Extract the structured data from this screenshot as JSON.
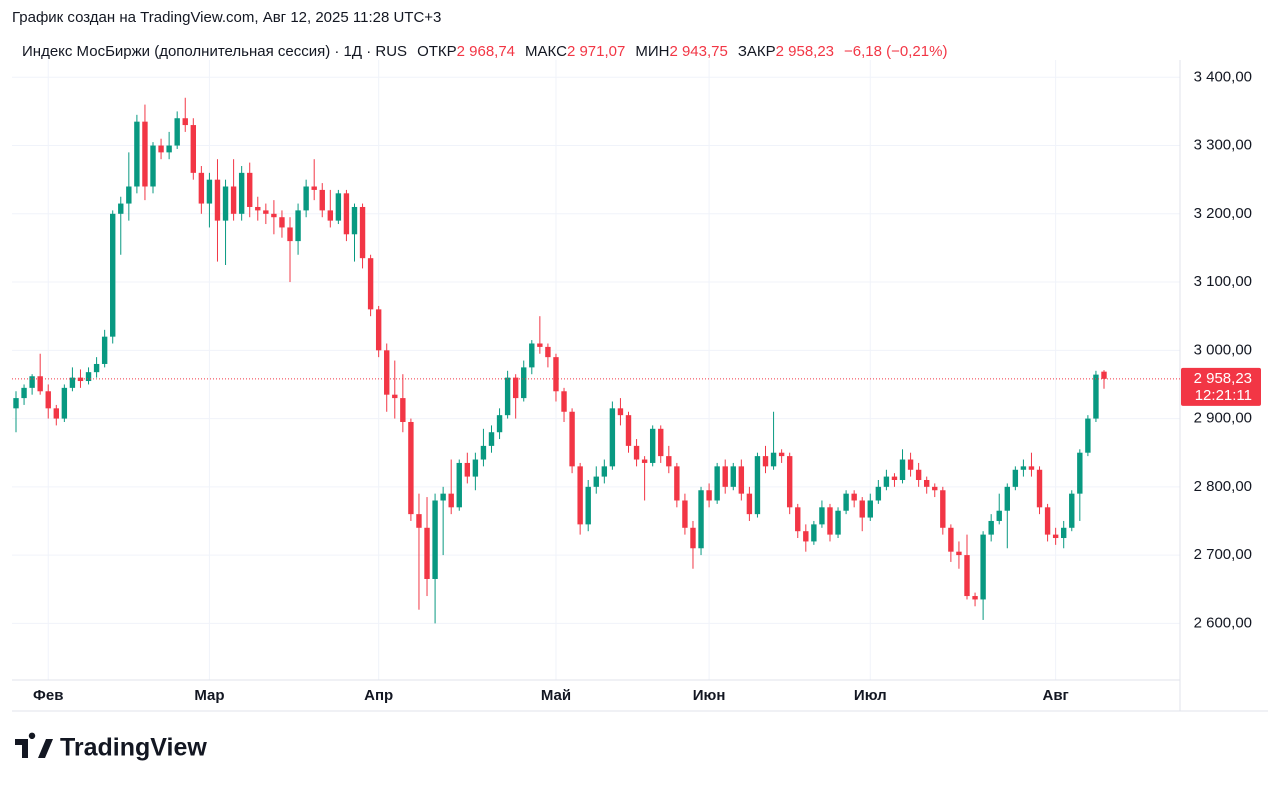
{
  "caption": "График создан на TradingView.com, Авг 12, 2025 11:28 UTC+3",
  "brand": "TradingView",
  "chart_data": {
    "type": "candlestick",
    "title": "Индекс МосБиржи (дополнительная сессия) · 1Д · RUS",
    "ohlc_legend": [
      {
        "name": "ОТКР",
        "text": "2 968,74"
      },
      {
        "name": "МАКС",
        "text": "2 971,07"
      },
      {
        "name": "МИН",
        "text": "2 943,75"
      },
      {
        "name": "ЗАКР",
        "text": "2 958,23"
      }
    ],
    "change": "−6,18 (−0,21%)",
    "last_price": {
      "value": 2958.23,
      "label": "2 958,23"
    },
    "countdown": "12:21:11",
    "up_color": "#089981",
    "down_color": "#f23645",
    "grid": true,
    "ylim": [
      2517,
      3418
    ],
    "yticks": [
      {
        "value": 2600,
        "label": "2 600,00"
      },
      {
        "value": 2700,
        "label": "2 700,00"
      },
      {
        "value": 2800,
        "label": "2 800,00"
      },
      {
        "value": 2900,
        "label": "2 900,00"
      },
      {
        "value": 3000,
        "label": "3 000,00"
      },
      {
        "value": 3100,
        "label": "3 100,00"
      },
      {
        "value": 3200,
        "label": "3 200,00"
      },
      {
        "value": 3300,
        "label": "3 300,00"
      },
      {
        "value": 3400,
        "label": "3 400,00"
      }
    ],
    "categories": [
      null,
      null,
      null,
      null,
      "Фев",
      null,
      null,
      null,
      null,
      null,
      null,
      null,
      null,
      null,
      null,
      null,
      null,
      null,
      null,
      null,
      null,
      null,
      null,
      null,
      "Мар",
      null,
      null,
      null,
      null,
      null,
      null,
      null,
      null,
      null,
      null,
      null,
      null,
      null,
      null,
      null,
      null,
      null,
      null,
      null,
      null,
      "Апр",
      null,
      null,
      null,
      null,
      null,
      null,
      null,
      null,
      null,
      null,
      null,
      null,
      null,
      null,
      null,
      null,
      null,
      null,
      null,
      null,
      null,
      "Май",
      null,
      null,
      null,
      null,
      null,
      null,
      null,
      null,
      null,
      null,
      null,
      null,
      null,
      null,
      null,
      null,
      null,
      null,
      "Июн",
      null,
      null,
      null,
      null,
      null,
      null,
      null,
      null,
      null,
      null,
      null,
      null,
      null,
      null,
      null,
      null,
      null,
      null,
      null,
      "Июл",
      null,
      null,
      null,
      null,
      null,
      null,
      null,
      null,
      null,
      null,
      null,
      null,
      null,
      null,
      null,
      null,
      null,
      null,
      null,
      null,
      null,
      null,
      "Авг",
      null,
      null,
      null,
      null,
      null,
      null
    ],
    "open": [
      2915,
      2930,
      2945,
      2962,
      2940,
      2915,
      2900,
      2945,
      2960,
      2955,
      2968,
      2980,
      3020,
      3200,
      3215,
      3240,
      3335,
      3240,
      3300,
      3290,
      3300,
      3340,
      3330,
      3260,
      3215,
      3250,
      3190,
      3240,
      3200,
      3260,
      3210,
      3205,
      3200,
      3195,
      3180,
      3160,
      3205,
      3240,
      3235,
      3205,
      3190,
      3230,
      3170,
      3210,
      3135,
      3060,
      3000,
      2935,
      2930,
      2895,
      2760,
      2740,
      2665,
      2780,
      2790,
      2770,
      2835,
      2815,
      2840,
      2860,
      2880,
      2905,
      2960,
      2930,
      2975,
      3010,
      3005,
      2990,
      2940,
      2910,
      2830,
      2745,
      2800,
      2815,
      2830,
      2915,
      2905,
      2860,
      2840,
      2835,
      2885,
      2845,
      2830,
      2780,
      2740,
      2710,
      2795,
      2780,
      2830,
      2800,
      2830,
      2790,
      2760,
      2845,
      2830,
      2850,
      2845,
      2770,
      2735,
      2720,
      2745,
      2770,
      2730,
      2765,
      2790,
      2780,
      2755,
      2780,
      2800,
      2815,
      2810,
      2840,
      2825,
      2810,
      2800,
      2795,
      2740,
      2705,
      2700,
      2640,
      2635,
      2730,
      2750,
      2765,
      2800,
      2825,
      2830,
      2825,
      2770,
      2730,
      2725,
      2740,
      2790,
      2850,
      2900,
      2968.74
    ],
    "high": [
      2940,
      2950,
      2965,
      2995,
      2950,
      2920,
      2950,
      2975,
      2972,
      2975,
      2990,
      3030,
      3205,
      3225,
      3290,
      3345,
      3360,
      3305,
      3310,
      3320,
      3350,
      3370,
      3340,
      3270,
      3260,
      3280,
      3250,
      3280,
      3270,
      3275,
      3225,
      3215,
      3220,
      3205,
      3195,
      3215,
      3250,
      3280,
      3245,
      3235,
      3235,
      3235,
      3215,
      3215,
      3140,
      3065,
      3010,
      2985,
      2965,
      2900,
      2790,
      2785,
      2790,
      2800,
      2840,
      2840,
      2850,
      2850,
      2885,
      2890,
      2915,
      2970,
      2965,
      2985,
      3015,
      3050,
      3010,
      2995,
      2945,
      2915,
      2835,
      2810,
      2830,
      2840,
      2925,
      2930,
      2910,
      2870,
      2845,
      2890,
      2890,
      2860,
      2835,
      2790,
      2750,
      2800,
      2805,
      2835,
      2840,
      2835,
      2840,
      2800,
      2850,
      2860,
      2910,
      2855,
      2850,
      2775,
      2745,
      2750,
      2780,
      2775,
      2770,
      2795,
      2795,
      2785,
      2790,
      2810,
      2825,
      2820,
      2855,
      2850,
      2835,
      2815,
      2805,
      2800,
      2745,
      2720,
      2730,
      2645,
      2735,
      2760,
      2790,
      2805,
      2830,
      2840,
      2850,
      2830,
      2775,
      2740,
      2750,
      2795,
      2855,
      2905,
      2970,
      2971.07
    ],
    "low": [
      2880,
      2920,
      2935,
      2935,
      2900,
      2890,
      2895,
      2940,
      2945,
      2950,
      2960,
      2975,
      3010,
      3140,
      3190,
      3230,
      3220,
      3230,
      3280,
      3280,
      3295,
      3320,
      3250,
      3200,
      3180,
      3130,
      3125,
      3190,
      3190,
      3195,
      3190,
      3185,
      3170,
      3165,
      3100,
      3140,
      3195,
      3220,
      3195,
      3180,
      3185,
      3160,
      3130,
      3120,
      3050,
      2990,
      2910,
      2900,
      2880,
      2750,
      2620,
      2640,
      2600,
      2700,
      2760,
      2765,
      2805,
      2795,
      2830,
      2850,
      2870,
      2900,
      2900,
      2925,
      2965,
      2995,
      2975,
      2925,
      2895,
      2820,
      2730,
      2735,
      2790,
      2805,
      2825,
      2890,
      2850,
      2830,
      2780,
      2830,
      2835,
      2820,
      2770,
      2730,
      2680,
      2700,
      2770,
      2775,
      2790,
      2795,
      2780,
      2750,
      2755,
      2820,
      2825,
      2835,
      2760,
      2725,
      2705,
      2715,
      2740,
      2720,
      2725,
      2760,
      2770,
      2735,
      2750,
      2775,
      2795,
      2800,
      2805,
      2815,
      2800,
      2790,
      2785,
      2730,
      2690,
      2680,
      2635,
      2625,
      2605,
      2720,
      2745,
      2710,
      2795,
      2815,
      2815,
      2760,
      2720,
      2715,
      2710,
      2735,
      2750,
      2845,
      2895,
      2943.75
    ],
    "close": [
      2930,
      2945,
      2962,
      2940,
      2915,
      2900,
      2945,
      2960,
      2955,
      2968,
      2980,
      3020,
      3200,
      3215,
      3240,
      3335,
      3240,
      3300,
      3290,
      3300,
      3340,
      3330,
      3260,
      3215,
      3250,
      3190,
      3240,
      3200,
      3260,
      3210,
      3205,
      3200,
      3195,
      3180,
      3160,
      3205,
      3240,
      3235,
      3205,
      3190,
      3230,
      3170,
      3210,
      3135,
      3060,
      3000,
      2935,
      2930,
      2895,
      2760,
      2740,
      2665,
      2780,
      2790,
      2770,
      2835,
      2815,
      2840,
      2860,
      2880,
      2905,
      2960,
      2930,
      2975,
      3010,
      3005,
      2990,
      2940,
      2910,
      2830,
      2745,
      2800,
      2815,
      2830,
      2915,
      2905,
      2860,
      2840,
      2835,
      2885,
      2845,
      2830,
      2780,
      2740,
      2710,
      2795,
      2780,
      2830,
      2800,
      2830,
      2790,
      2760,
      2845,
      2830,
      2850,
      2845,
      2770,
      2735,
      2720,
      2745,
      2770,
      2730,
      2765,
      2790,
      2780,
      2755,
      2780,
      2800,
      2815,
      2810,
      2840,
      2825,
      2810,
      2800,
      2795,
      2740,
      2705,
      2700,
      2640,
      2635,
      2730,
      2750,
      2765,
      2800,
      2825,
      2830,
      2825,
      2770,
      2730,
      2725,
      2740,
      2790,
      2850,
      2900,
      2964.41,
      2958.23
    ]
  }
}
